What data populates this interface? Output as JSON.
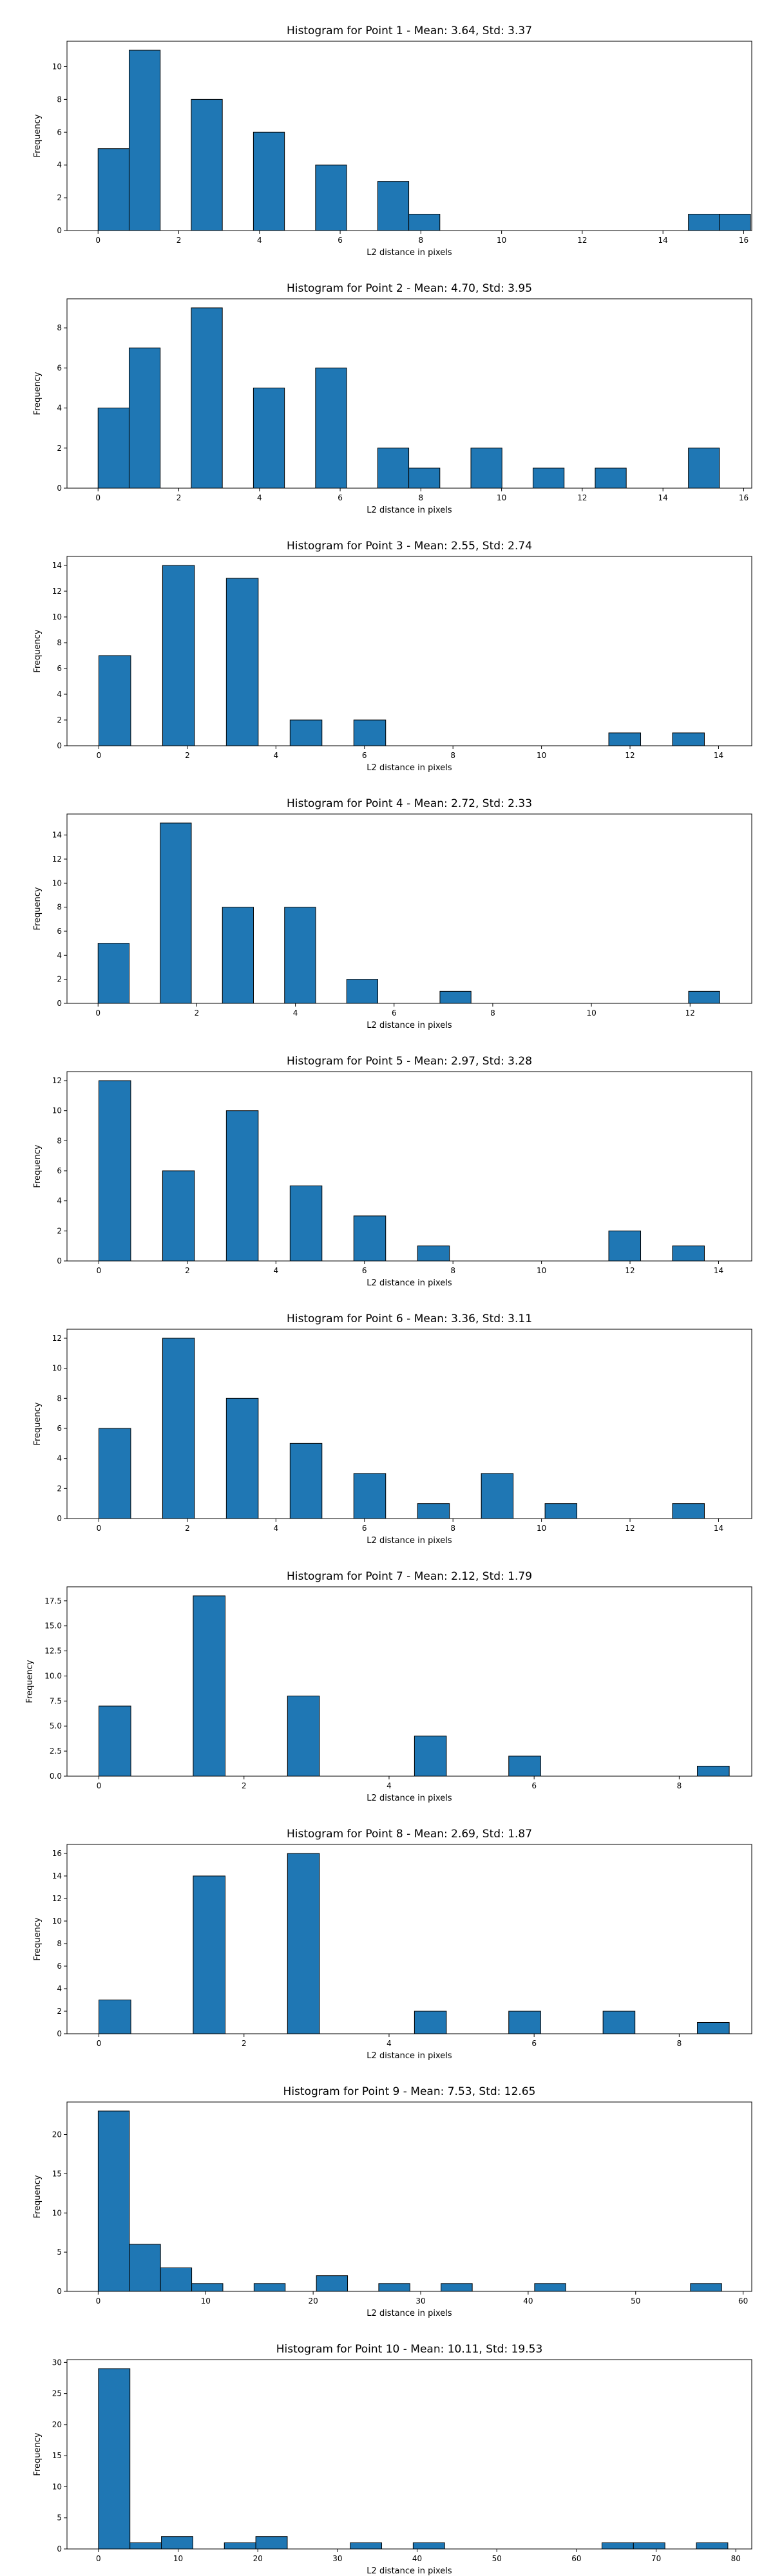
{
  "colors": {
    "bar_fill": "#1f77b4",
    "bar_edge": "#000000",
    "background": "#ffffff"
  },
  "chart_data": [
    {
      "type": "bar",
      "title": "Histogram for Point 1 - Mean: 3.64, Std: 3.37",
      "xlabel": "L2 distance in pixels",
      "ylabel": "Frequency",
      "xlim": [
        -0.77,
        16.2
      ],
      "ylim": [
        0,
        11.55
      ],
      "xticks": [
        0,
        2,
        4,
        6,
        8,
        10,
        12,
        14,
        16
      ],
      "yticks": [
        0,
        2,
        4,
        6,
        8,
        10
      ],
      "bin_width": 0.77,
      "bins": [
        [
          0,
          5
        ],
        [
          0.77,
          11
        ],
        [
          2.31,
          8
        ],
        [
          3.85,
          6
        ],
        [
          5.39,
          4
        ],
        [
          6.93,
          3
        ],
        [
          7.7,
          1
        ],
        [
          14.63,
          1
        ],
        [
          15.4,
          1
        ]
      ]
    },
    {
      "type": "bar",
      "title": "Histogram for Point 2 - Mean: 4.70, Std: 3.95",
      "xlabel": "L2 distance in pixels",
      "ylabel": "Frequency",
      "xlim": [
        -0.77,
        16.2
      ],
      "ylim": [
        0,
        9.45
      ],
      "xticks": [
        0,
        2,
        4,
        6,
        8,
        10,
        12,
        14,
        16
      ],
      "yticks": [
        0,
        2,
        4,
        6,
        8
      ],
      "bin_width": 0.77,
      "bins": [
        [
          0,
          4
        ],
        [
          0.77,
          7
        ],
        [
          2.31,
          9
        ],
        [
          3.85,
          5
        ],
        [
          5.39,
          6
        ],
        [
          6.93,
          2
        ],
        [
          7.7,
          1
        ],
        [
          9.24,
          2
        ],
        [
          10.78,
          1
        ],
        [
          12.32,
          1
        ],
        [
          14.63,
          2
        ]
      ]
    },
    {
      "type": "bar",
      "title": "Histogram for Point 3 - Mean: 2.55, Std: 2.74",
      "xlabel": "L2 distance in pixels",
      "ylabel": "Frequency",
      "xlim": [
        -0.72,
        14.75
      ],
      "ylim": [
        0,
        14.7
      ],
      "xticks": [
        0,
        2,
        4,
        6,
        8,
        10,
        12,
        14
      ],
      "yticks": [
        0,
        2,
        4,
        6,
        8,
        10,
        12,
        14
      ],
      "bin_width": 0.72,
      "bins": [
        [
          0,
          7
        ],
        [
          1.44,
          14
        ],
        [
          2.88,
          13
        ],
        [
          4.32,
          2
        ],
        [
          5.76,
          2
        ],
        [
          11.52,
          1
        ],
        [
          12.96,
          1
        ]
      ]
    },
    {
      "type": "bar",
      "title": "Histogram for Point 4 - Mean: 2.72, Std: 2.33",
      "xlabel": "L2 distance in pixels",
      "ylabel": "Frequency",
      "xlim": [
        -0.63,
        13.25
      ],
      "ylim": [
        0,
        15.75
      ],
      "xticks": [
        0,
        2,
        4,
        6,
        8,
        10,
        12
      ],
      "yticks": [
        0,
        2,
        4,
        6,
        8,
        10,
        12,
        14
      ],
      "bin_width": 0.63,
      "bins": [
        [
          0,
          5
        ],
        [
          1.26,
          15
        ],
        [
          2.52,
          8
        ],
        [
          3.78,
          8
        ],
        [
          5.04,
          2
        ],
        [
          6.93,
          1
        ],
        [
          11.97,
          1
        ]
      ]
    },
    {
      "type": "bar",
      "title": "Histogram for Point 5 - Mean: 2.97, Std: 3.28",
      "xlabel": "L2 distance in pixels",
      "ylabel": "Frequency",
      "xlim": [
        -0.72,
        14.75
      ],
      "ylim": [
        0,
        12.6
      ],
      "xticks": [
        0,
        2,
        4,
        6,
        8,
        10,
        12,
        14
      ],
      "yticks": [
        0,
        2,
        4,
        6,
        8,
        10,
        12
      ],
      "bin_width": 0.72,
      "bins": [
        [
          0,
          12
        ],
        [
          1.44,
          6
        ],
        [
          2.88,
          10
        ],
        [
          4.32,
          5
        ],
        [
          5.76,
          3
        ],
        [
          7.2,
          1
        ],
        [
          11.52,
          2
        ],
        [
          12.96,
          1
        ]
      ]
    },
    {
      "type": "bar",
      "title": "Histogram for Point 6 - Mean: 3.36, Std: 3.11",
      "xlabel": "L2 distance in pixels",
      "ylabel": "Frequency",
      "xlim": [
        -0.72,
        14.75
      ],
      "ylim": [
        0,
        12.6
      ],
      "xticks": [
        0,
        2,
        4,
        6,
        8,
        10,
        12,
        14
      ],
      "yticks": [
        0,
        2,
        4,
        6,
        8,
        10,
        12
      ],
      "bin_width": 0.72,
      "bins": [
        [
          0,
          6
        ],
        [
          1.44,
          12
        ],
        [
          2.88,
          8
        ],
        [
          4.32,
          5
        ],
        [
          5.76,
          3
        ],
        [
          7.2,
          1
        ],
        [
          8.64,
          3
        ],
        [
          10.08,
          1
        ],
        [
          12.96,
          1
        ]
      ]
    },
    {
      "type": "bar",
      "title": "Histogram for Point 7 - Mean: 2.12, Std: 1.79",
      "xlabel": "L2 distance in pixels",
      "ylabel": "Frequency",
      "xlim": [
        -0.44,
        9.0
      ],
      "ylim": [
        0,
        18.9
      ],
      "xticks": [
        0,
        2,
        4,
        6,
        8
      ],
      "yticks": [
        0.0,
        2.5,
        5.0,
        7.5,
        10.0,
        12.5,
        15.0,
        17.5
      ],
      "ytick_labels": [
        "0.0",
        "2.5",
        "5.0",
        "7.5",
        "10.0",
        "12.5",
        "15.0",
        "17.5"
      ],
      "bin_width": 0.44,
      "bins": [
        [
          0,
          7
        ],
        [
          1.3,
          18
        ],
        [
          2.6,
          8
        ],
        [
          4.35,
          4
        ],
        [
          5.65,
          2
        ],
        [
          8.25,
          1
        ]
      ]
    },
    {
      "type": "bar",
      "title": "Histogram for Point 8 - Mean: 2.69, Std: 1.87",
      "xlabel": "L2 distance in pixels",
      "ylabel": "Frequency",
      "xlim": [
        -0.44,
        9.0
      ],
      "ylim": [
        0,
        16.8
      ],
      "xticks": [
        0,
        2,
        4,
        6,
        8
      ],
      "yticks": [
        0,
        2,
        4,
        6,
        8,
        10,
        12,
        14,
        16
      ],
      "bin_width": 0.44,
      "bins": [
        [
          0,
          3
        ],
        [
          1.3,
          14
        ],
        [
          2.6,
          16
        ],
        [
          4.35,
          2
        ],
        [
          5.65,
          2
        ],
        [
          6.95,
          2
        ],
        [
          8.25,
          1
        ]
      ]
    },
    {
      "type": "bar",
      "title": "Histogram for Point 9 - Mean: 7.53, Std: 12.65",
      "xlabel": "L2 distance in pixels",
      "ylabel": "Frequency",
      "xlim": [
        -2.9,
        60.8
      ],
      "ylim": [
        0,
        24.15
      ],
      "xticks": [
        0,
        10,
        20,
        30,
        40,
        50,
        60
      ],
      "yticks": [
        0,
        5,
        10,
        15,
        20
      ],
      "bin_width": 2.9,
      "bins": [
        [
          0,
          23
        ],
        [
          2.9,
          6
        ],
        [
          5.8,
          3
        ],
        [
          8.7,
          1
        ],
        [
          14.5,
          1
        ],
        [
          20.3,
          2
        ],
        [
          26.1,
          1
        ],
        [
          31.9,
          1
        ],
        [
          40.6,
          1
        ],
        [
          55.1,
          1
        ]
      ]
    },
    {
      "type": "bar",
      "title": "Histogram for Point 10 - Mean: 10.11, Std: 19.53",
      "xlabel": "L2 distance in pixels",
      "ylabel": "Frequency",
      "xlim": [
        -3.95,
        82.0
      ],
      "ylim": [
        0,
        30.45
      ],
      "xticks": [
        0,
        10,
        20,
        30,
        40,
        50,
        60,
        70,
        80
      ],
      "yticks": [
        0,
        5,
        10,
        15,
        20,
        25,
        30
      ],
      "bin_width": 3.95,
      "bins": [
        [
          0,
          29
        ],
        [
          3.95,
          1
        ],
        [
          7.9,
          2
        ],
        [
          15.8,
          1
        ],
        [
          19.75,
          2
        ],
        [
          31.6,
          1
        ],
        [
          39.5,
          1
        ],
        [
          63.2,
          1
        ],
        [
          67.15,
          1
        ],
        [
          75.05,
          1
        ]
      ]
    }
  ]
}
